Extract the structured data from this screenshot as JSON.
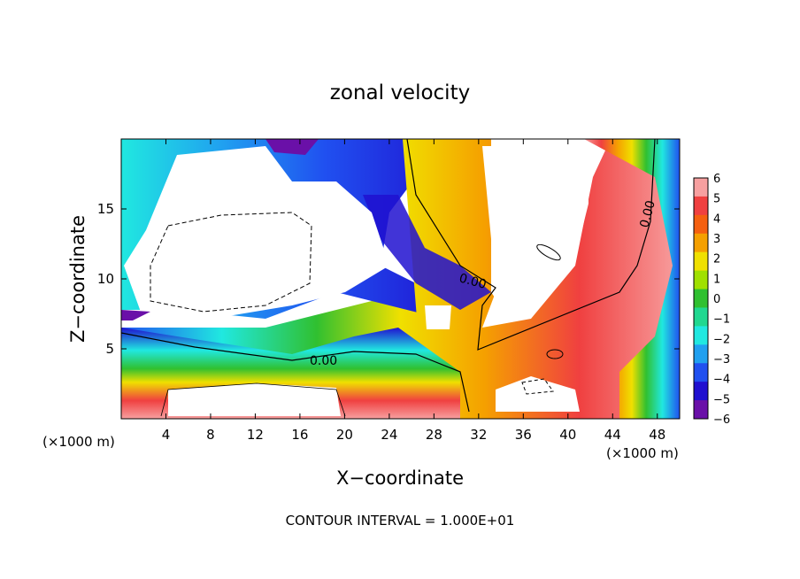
{
  "chart_data": {
    "type": "heatmap",
    "title": "zonal velocity",
    "xlabel": "X−coordinate",
    "ylabel": "Z−coordinate",
    "x_unit_label": "(×1000 m)",
    "z_unit_label": "(×1000 m)",
    "xlim": [
      0,
      50
    ],
    "ylim": [
      0,
      20
    ],
    "x_ticks": [
      4,
      8,
      12,
      16,
      20,
      24,
      28,
      32,
      36,
      40,
      44,
      48
    ],
    "y_ticks": [
      5,
      10,
      15
    ],
    "colorbar": {
      "range": [
        -6,
        6
      ],
      "ticks": [
        "6",
        "5",
        "4",
        "3",
        "2",
        "1",
        "0",
        "−1",
        "−2",
        "−3",
        "−4",
        "−5",
        "−6"
      ],
      "colors": [
        "#f7a0a0",
        "#f04040",
        "#f56010",
        "#f5a000",
        "#f0e000",
        "#a0e000",
        "#30c030",
        "#20d890",
        "#20e8e0",
        "#20a0f0",
        "#2050f0",
        "#2010d0",
        "#6a10a8"
      ]
    },
    "contour_labels": [
      "0.00",
      "0.00",
      "0.00"
    ],
    "footer": "CONTOUR INTERVAL = 1.000E+01"
  }
}
